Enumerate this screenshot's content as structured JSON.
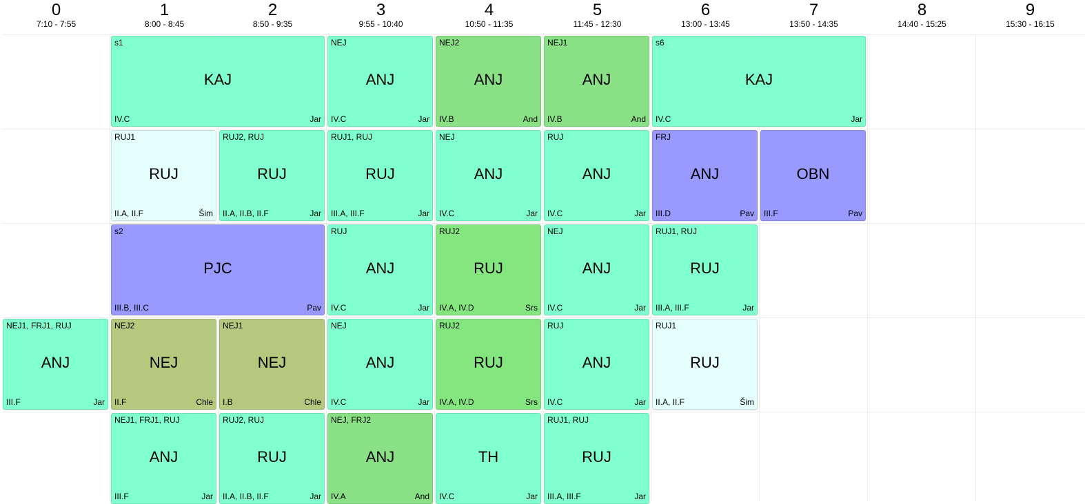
{
  "periods": [
    {
      "num": "0",
      "time": "7:10 - 7:55"
    },
    {
      "num": "1",
      "time": "8:00 - 8:45"
    },
    {
      "num": "2",
      "time": "8:50 - 9:35"
    },
    {
      "num": "3",
      "time": "9:55 - 10:40"
    },
    {
      "num": "4",
      "time": "10:50 - 11:35"
    },
    {
      "num": "5",
      "time": "11:45 - 12:30"
    },
    {
      "num": "6",
      "time": "13:00 - 13:45"
    },
    {
      "num": "7",
      "time": "13:50 - 14:35"
    },
    {
      "num": "8",
      "time": "14:40 - 15:25"
    },
    {
      "num": "9",
      "time": "15:30 - 16:15"
    }
  ],
  "lessons": [
    {
      "row": 0,
      "start": 1,
      "span": 2,
      "group": "s1",
      "subject": "KAJ",
      "classes": "IV.C",
      "teacher": "Jar",
      "color": "#80ffcf"
    },
    {
      "row": 0,
      "start": 3,
      "span": 1,
      "group": "NEJ",
      "subject": "ANJ",
      "classes": "IV.C",
      "teacher": "Jar",
      "color": "#80ffcf"
    },
    {
      "row": 0,
      "start": 4,
      "span": 1,
      "group": "NEJ2",
      "subject": "ANJ",
      "classes": "IV.B",
      "teacher": "And",
      "color": "#8ae085"
    },
    {
      "row": 0,
      "start": 5,
      "span": 1,
      "group": "NEJ1",
      "subject": "ANJ",
      "classes": "IV.B",
      "teacher": "And",
      "color": "#8ae085"
    },
    {
      "row": 0,
      "start": 6,
      "span": 2,
      "group": "s6",
      "subject": "KAJ",
      "classes": "IV.C",
      "teacher": "Jar",
      "color": "#80ffcf"
    },
    {
      "row": 1,
      "start": 1,
      "span": 1,
      "group": "RUJ1",
      "subject": "RUJ",
      "classes": "II.A, II.F",
      "teacher": "Šim",
      "color": "#e4fefe"
    },
    {
      "row": 1,
      "start": 2,
      "span": 1,
      "group": "RUJ2, RUJ",
      "subject": "RUJ",
      "classes": "II.A, II.B, II.F",
      "teacher": "Jar",
      "color": "#80ffcf"
    },
    {
      "row": 1,
      "start": 3,
      "span": 1,
      "group": "RUJ1, RUJ",
      "subject": "RUJ",
      "classes": "III.A, III.F",
      "teacher": "Jar",
      "color": "#80ffcf"
    },
    {
      "row": 1,
      "start": 4,
      "span": 1,
      "group": "NEJ",
      "subject": "ANJ",
      "classes": "IV.C",
      "teacher": "Jar",
      "color": "#80ffcf"
    },
    {
      "row": 1,
      "start": 5,
      "span": 1,
      "group": "RUJ",
      "subject": "ANJ",
      "classes": "IV.C",
      "teacher": "Jar",
      "color": "#80ffcf"
    },
    {
      "row": 1,
      "start": 6,
      "span": 1,
      "group": "FRJ",
      "subject": "ANJ",
      "classes": "III.D",
      "teacher": "Pav",
      "color": "#9999ff"
    },
    {
      "row": 1,
      "start": 7,
      "span": 1,
      "group": "",
      "subject": "OBN",
      "classes": "III.F",
      "teacher": "Pav",
      "color": "#9999ff"
    },
    {
      "row": 2,
      "start": 1,
      "span": 2,
      "group": "s2",
      "subject": "PJC",
      "classes": "III.B, III.C",
      "teacher": "Pav",
      "color": "#9999ff"
    },
    {
      "row": 2,
      "start": 3,
      "span": 1,
      "group": "RUJ",
      "subject": "ANJ",
      "classes": "IV.C",
      "teacher": "Jar",
      "color": "#80ffcf"
    },
    {
      "row": 2,
      "start": 4,
      "span": 1,
      "group": "RUJ2",
      "subject": "RUJ",
      "classes": "IV.A, IV.D",
      "teacher": "Srs",
      "color": "#84e67f"
    },
    {
      "row": 2,
      "start": 5,
      "span": 1,
      "group": "NEJ",
      "subject": "ANJ",
      "classes": "IV.C",
      "teacher": "Jar",
      "color": "#80ffcf"
    },
    {
      "row": 2,
      "start": 6,
      "span": 1,
      "group": "RUJ1, RUJ",
      "subject": "RUJ",
      "classes": "III.A, III.F",
      "teacher": "Jar",
      "color": "#80ffcf"
    },
    {
      "row": 3,
      "start": 0,
      "span": 1,
      "group": "NEJ1, FRJ1, RUJ",
      "subject": "ANJ",
      "classes": "III.F",
      "teacher": "Jar",
      "color": "#80ffcf"
    },
    {
      "row": 3,
      "start": 1,
      "span": 1,
      "group": "NEJ2",
      "subject": "NEJ",
      "classes": "II.F",
      "teacher": "Chle",
      "color": "#b4c97d"
    },
    {
      "row": 3,
      "start": 2,
      "span": 1,
      "group": "NEJ1",
      "subject": "NEJ",
      "classes": "I.B",
      "teacher": "Chle",
      "color": "#b4c97d"
    },
    {
      "row": 3,
      "start": 3,
      "span": 1,
      "group": "NEJ",
      "subject": "ANJ",
      "classes": "IV.C",
      "teacher": "Jar",
      "color": "#80ffcf"
    },
    {
      "row": 3,
      "start": 4,
      "span": 1,
      "group": "RUJ2",
      "subject": "RUJ",
      "classes": "IV.A, IV.D",
      "teacher": "Srs",
      "color": "#84e67f"
    },
    {
      "row": 3,
      "start": 5,
      "span": 1,
      "group": "RUJ",
      "subject": "ANJ",
      "classes": "IV.C",
      "teacher": "Jar",
      "color": "#80ffcf"
    },
    {
      "row": 3,
      "start": 6,
      "span": 1,
      "group": "RUJ1",
      "subject": "RUJ",
      "classes": "II.A, II.F",
      "teacher": "Šim",
      "color": "#e4fefe"
    },
    {
      "row": 4,
      "start": 1,
      "span": 1,
      "group": "NEJ1, FRJ1, RUJ",
      "subject": "ANJ",
      "classes": "III.F",
      "teacher": "Jar",
      "color": "#80ffcf"
    },
    {
      "row": 4,
      "start": 2,
      "span": 1,
      "group": "RUJ2, RUJ",
      "subject": "RUJ",
      "classes": "II.A, II.B, II.F",
      "teacher": "Jar",
      "color": "#80ffcf"
    },
    {
      "row": 4,
      "start": 3,
      "span": 1,
      "group": "NEJ, FRJ2",
      "subject": "ANJ",
      "classes": "IV.A",
      "teacher": "And",
      "color": "#8ae085"
    },
    {
      "row": 4,
      "start": 4,
      "span": 1,
      "group": "",
      "subject": "TH",
      "classes": "IV.C",
      "teacher": "Jar",
      "color": "#80ffcf"
    },
    {
      "row": 4,
      "start": 5,
      "span": 1,
      "group": "RUJ1, RUJ",
      "subject": "RUJ",
      "classes": "III.A, III.F",
      "teacher": "Jar",
      "color": "#80ffcf"
    }
  ]
}
